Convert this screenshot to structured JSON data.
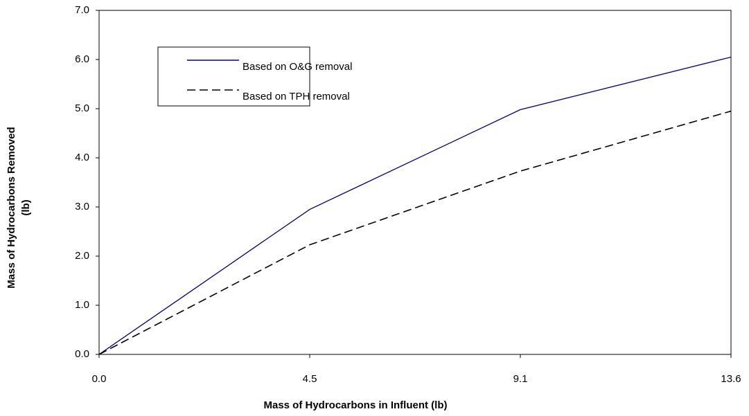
{
  "chart_data": {
    "type": "line",
    "categories": [
      "0.0",
      "4.5",
      "9.1",
      "13.6"
    ],
    "series": [
      {
        "name": "Based on O&G removal",
        "color": "#000080",
        "dash": false,
        "values": [
          0,
          2.95,
          4.98,
          6.05
        ]
      },
      {
        "name": "Based on TPH removal",
        "color": "#000000",
        "dash": true,
        "values": [
          0,
          2.23,
          3.73,
          4.95
        ]
      }
    ],
    "xlabel": "Mass of Hydrocarbons in Influent (lb)",
    "ylabel": [
      "Mass of Hydrocarbons Removed",
      "(lb)"
    ],
    "ylim": [
      0,
      7
    ],
    "yticks": [
      {
        "value": 0,
        "label": "0.0"
      },
      {
        "value": 1,
        "label": "1.0"
      },
      {
        "value": 2,
        "label": "2.0"
      },
      {
        "value": 3,
        "label": "3.0"
      },
      {
        "value": 4,
        "label": "4.0"
      },
      {
        "value": 5,
        "label": "5.0"
      },
      {
        "value": 6,
        "label": "6.0"
      },
      {
        "value": 7,
        "label": "7.0"
      }
    ],
    "grid": false
  }
}
